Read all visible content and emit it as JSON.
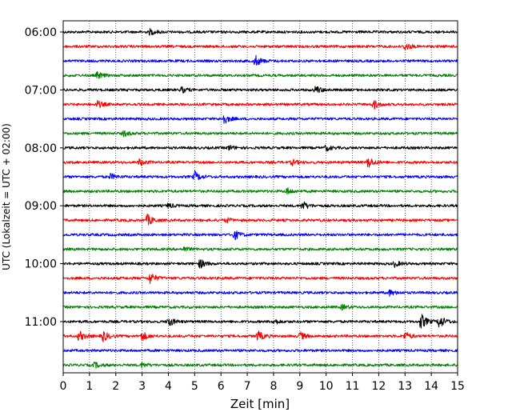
{
  "chart_data": {
    "type": "line",
    "subtype": "helicorder",
    "title": "",
    "xlabel": "Zeit  [min]",
    "ylabel": "UTC (Lokalzeit = UTC + 02:00)",
    "xlim": [
      0,
      15
    ],
    "x_ticks": [
      "0",
      "1",
      "2",
      "3",
      "4",
      "5",
      "6",
      "7",
      "8",
      "9",
      "10",
      "11",
      "12",
      "13",
      "14",
      "15"
    ],
    "y_ticks": [
      "06:00",
      "07:00",
      "08:00",
      "09:00",
      "10:00",
      "11:00"
    ],
    "grid": "vertical dotted",
    "trace_interval_min": 15,
    "color_cycle": [
      "#000000",
      "#ff0000",
      "#0000ff",
      "#008000"
    ],
    "traces": [
      {
        "start": "06:00",
        "color": "#000000",
        "events": [
          [
            3.3,
            0.5
          ]
        ]
      },
      {
        "start": "06:15",
        "color": "#ff0000",
        "events": [
          [
            13.0,
            0.7
          ]
        ]
      },
      {
        "start": "06:30",
        "color": "#0000ff",
        "events": [
          [
            7.3,
            1.0
          ]
        ]
      },
      {
        "start": "06:45",
        "color": "#008000",
        "events": [
          [
            1.3,
            0.6
          ]
        ]
      },
      {
        "start": "07:00",
        "color": "#000000",
        "events": [
          [
            4.5,
            0.5
          ],
          [
            9.6,
            0.7
          ]
        ]
      },
      {
        "start": "07:15",
        "color": "#ff0000",
        "events": [
          [
            1.3,
            0.6
          ],
          [
            11.8,
            0.8
          ]
        ]
      },
      {
        "start": "07:30",
        "color": "#0000ff",
        "events": [
          [
            6.1,
            0.9
          ]
        ]
      },
      {
        "start": "07:45",
        "color": "#008000",
        "events": [
          [
            2.3,
            0.5
          ]
        ]
      },
      {
        "start": "08:00",
        "color": "#000000",
        "events": [
          [
            6.3,
            0.4
          ],
          [
            10.0,
            0.5
          ]
        ]
      },
      {
        "start": "08:15",
        "color": "#ff0000",
        "events": [
          [
            2.9,
            0.6
          ],
          [
            8.7,
            0.5
          ],
          [
            11.6,
            1.0
          ]
        ]
      },
      {
        "start": "08:30",
        "color": "#0000ff",
        "events": [
          [
            1.8,
            0.5
          ],
          [
            5.0,
            0.9
          ]
        ]
      },
      {
        "start": "08:45",
        "color": "#008000",
        "events": [
          [
            8.5,
            0.6
          ]
        ]
      },
      {
        "start": "09:00",
        "color": "#000000",
        "events": [
          [
            4.0,
            0.4
          ],
          [
            9.1,
            0.8
          ]
        ]
      },
      {
        "start": "09:15",
        "color": "#ff0000",
        "events": [
          [
            3.2,
            1.0
          ],
          [
            6.2,
            0.4
          ]
        ]
      },
      {
        "start": "09:30",
        "color": "#0000ff",
        "events": [
          [
            6.5,
            0.9
          ]
        ]
      },
      {
        "start": "09:45",
        "color": "#008000",
        "events": [
          [
            4.6,
            0.4
          ]
        ]
      },
      {
        "start": "10:00",
        "color": "#000000",
        "events": [
          [
            5.2,
            0.8
          ],
          [
            12.6,
            0.5
          ]
        ]
      },
      {
        "start": "10:15",
        "color": "#ff0000",
        "events": [
          [
            3.3,
            1.0
          ]
        ]
      },
      {
        "start": "10:30",
        "color": "#0000ff",
        "events": [
          [
            12.4,
            0.5
          ]
        ]
      },
      {
        "start": "10:45",
        "color": "#008000",
        "events": [
          [
            10.6,
            0.4
          ]
        ]
      },
      {
        "start": "11:00",
        "color": "#000000",
        "events": [
          [
            4.0,
            0.9
          ],
          [
            8.0,
            0.5
          ],
          [
            13.6,
            1.4
          ],
          [
            14.3,
            1.2
          ]
        ]
      },
      {
        "start": "11:15",
        "color": "#ff0000",
        "events": [
          [
            0.6,
            0.9
          ],
          [
            1.5,
            1.0
          ],
          [
            3.0,
            0.8
          ],
          [
            7.4,
            0.9
          ],
          [
            9.0,
            0.7
          ],
          [
            13.0,
            0.7
          ]
        ]
      },
      {
        "start": "11:30",
        "color": "#0000ff",
        "events": []
      },
      {
        "start": "11:45",
        "color": "#008000",
        "events": [
          [
            1.2,
            0.5
          ],
          [
            3.0,
            0.4
          ]
        ]
      }
    ]
  }
}
